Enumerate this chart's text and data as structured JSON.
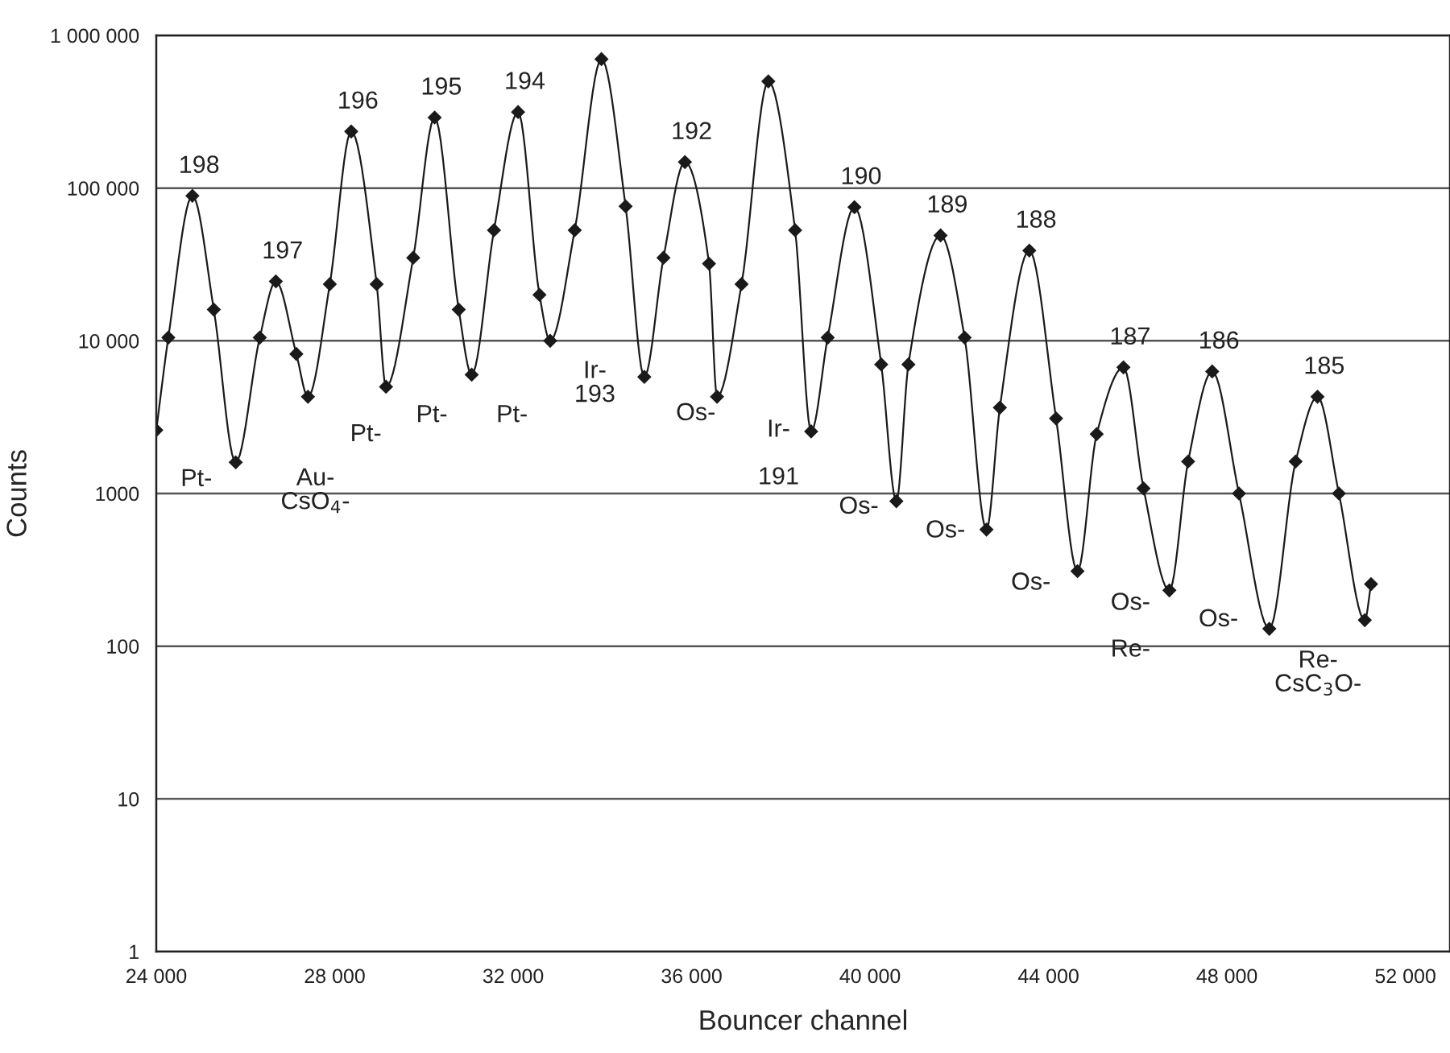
{
  "chart_data": {
    "type": "line",
    "xlabel": "Bouncer channel",
    "ylabel": "Counts",
    "log": "y",
    "grid": "y",
    "marker": "diamond",
    "line_style": "solid",
    "xlim": [
      24000,
      53000
    ],
    "xticks": [
      {
        "value": 24000,
        "label": "24 000"
      },
      {
        "value": 28000,
        "label": "28 000"
      },
      {
        "value": 32000,
        "label": "32 000"
      },
      {
        "value": 36000,
        "label": "36 000"
      },
      {
        "value": 40000,
        "label": "40 000"
      },
      {
        "value": 44000,
        "label": "44 000"
      },
      {
        "value": 48000,
        "label": "48 000"
      },
      {
        "value": 52000,
        "label": "52 000"
      }
    ],
    "ylim": [
      1,
      1000000
    ],
    "yticks": [
      1,
      10,
      100,
      1000,
      {
        "value": 10000,
        "label": "10 000"
      },
      {
        "value": 100000,
        "label": "100 000"
      },
      {
        "value": 1000000,
        "label": "1 000 000"
      }
    ],
    "series": [
      {
        "color": "#1a1a1a",
        "x": [
          24000,
          24270,
          24810,
          25290,
          25780,
          26320,
          26680,
          27140,
          27400,
          27890,
          28370,
          28940,
          29150,
          29760,
          30240,
          30780,
          31070,
          31570,
          32110,
          32590,
          32830,
          33380,
          33980,
          34520,
          34940,
          35370,
          35850,
          36390,
          36570,
          37120,
          37720,
          38320,
          38680,
          39050,
          39650,
          40250,
          40590,
          40860,
          41580,
          42120,
          42610,
          42910,
          43570,
          44170,
          44650,
          45080,
          45680,
          46130,
          46710,
          47130,
          47670,
          48270,
          48950,
          49540,
          50030,
          50510,
          51090,
          51230
        ],
        "values": [
          2600,
          10500,
          89000,
          16000,
          1600,
          10500,
          24500,
          8200,
          4300,
          23500,
          235000,
          23500,
          5000,
          35000,
          290000,
          16000,
          6000,
          53000,
          315000,
          20000,
          10000,
          53000,
          700000,
          76000,
          5800,
          35000,
          148000,
          32000,
          4300,
          23500,
          500000,
          53000,
          2550,
          10500,
          75000,
          7000,
          890,
          7000,
          49000,
          10500,
          580,
          3650,
          39000,
          3100,
          310,
          2450,
          6700,
          1080,
          232,
          1620,
          6300,
          1000,
          130,
          1620,
          4300,
          1000,
          148,
          255
        ]
      }
    ],
    "annotations": [
      {
        "text": "198",
        "x": 24810,
        "y": 89000
      },
      {
        "text": "197",
        "x": 26680,
        "y": 24500
      },
      {
        "text": "196",
        "x": 28370,
        "y": 235000
      },
      {
        "text": "195",
        "x": 30240,
        "y": 290000
      },
      {
        "text": "194",
        "x": 32110,
        "y": 315000
      },
      {
        "text": "192",
        "x": 35850,
        "y": 148000
      },
      {
        "text": "190",
        "x": 39650,
        "y": 75000
      },
      {
        "text": "189",
        "x": 41580,
        "y": 49000
      },
      {
        "text": "188",
        "x": 43570,
        "y": 39000
      },
      {
        "text": "187",
        "x": 45680,
        "y": 6700
      },
      {
        "text": "186",
        "x": 47670,
        "y": 6300
      },
      {
        "text": "185",
        "x": 50030,
        "y": 4300
      },
      "Pt-",
      "Au-\nCsO$_{4}$-",
      "Pt-",
      "Pt-",
      "Pt-",
      "Ir-\n193",
      "Os-",
      "Ir-",
      "191",
      "Os-",
      "Os-",
      "Os-",
      "Os-",
      "Re-",
      "Os-",
      "Re-\nCsC$_{3}$O-"
    ]
  }
}
